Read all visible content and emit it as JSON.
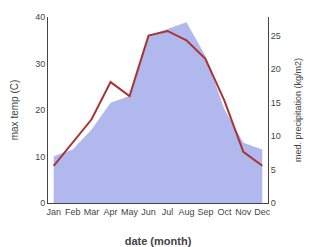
{
  "chart_data": {
    "type": "line",
    "categories": [
      "Jan",
      "Feb",
      "Mar",
      "Apr",
      "May",
      "Jun",
      "Jul",
      "Aug",
      "Sep",
      "Oct",
      "Nov",
      "Dec"
    ],
    "series": [
      {
        "type": "area",
        "axis": "y2",
        "color": "#b0b8ee",
        "values": [
          7,
          8,
          11,
          15,
          16,
          25,
          26,
          27,
          22,
          14,
          9,
          8
        ]
      },
      {
        "type": "line",
        "axis": "y",
        "color": "#aa3333",
        "values": [
          8,
          13,
          18,
          26,
          23,
          36,
          37,
          35,
          31,
          22,
          11,
          8
        ]
      }
    ],
    "xlabel": "date (month)",
    "ylabel": "max temp (C)",
    "y2label": "med. precipitation (kg/m2)",
    "ylim": [
      0,
      40
    ],
    "yticks": [
      0,
      10,
      20,
      30,
      40
    ],
    "y2lim": [
      0,
      27.8
    ],
    "y2ticks": [
      0,
      5,
      10,
      15,
      20,
      25
    ],
    "grid": false
  }
}
